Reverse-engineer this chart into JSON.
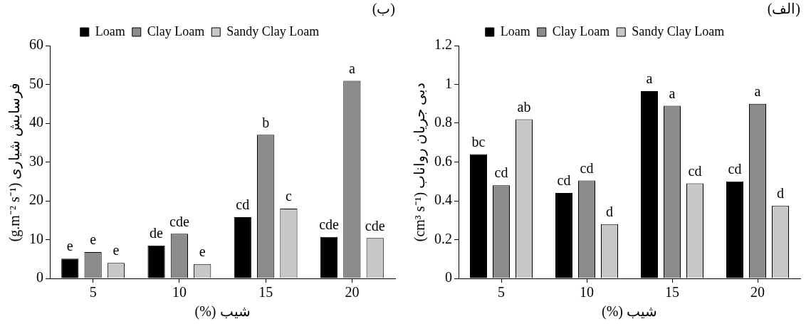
{
  "chart_data": [
    {
      "type": "bar",
      "title": "(ب)",
      "xlabel": "(%) شیب",
      "ylabel": "(g.m⁻² s⁻¹) فرسایش شیاری",
      "categories": [
        "5",
        "10",
        "15",
        "20"
      ],
      "series": [
        {
          "name": "Loam",
          "color": "#000000",
          "values": [
            5.1,
            8.5,
            15.8,
            10.7
          ],
          "value_labels": [
            "e",
            "de",
            "cd",
            "cde"
          ]
        },
        {
          "name": "Clay Loam",
          "color": "#8c8c8c",
          "values": [
            6.8,
            11.5,
            37,
            50.9
          ],
          "value_labels": [
            "e",
            "cde",
            "b",
            "a"
          ]
        },
        {
          "name": "Sandy Clay Loam",
          "color": "#c8c8c8",
          "values": [
            4,
            3.7,
            18,
            10.4
          ],
          "value_labels": [
            "e",
            "e",
            "c",
            "cde"
          ]
        }
      ],
      "ylim": [
        0,
        60
      ],
      "yticks": [
        0,
        10,
        20,
        30,
        40,
        50,
        60
      ],
      "grid": false,
      "legend": "top"
    },
    {
      "type": "bar",
      "title": "(الف)",
      "xlabel": "(%) شیب",
      "ylabel": "(cm³ s⁻¹) دبی جریان رواناب",
      "categories": [
        "5",
        "10",
        "15",
        "20"
      ],
      "series": [
        {
          "name": "Loam",
          "color": "#000000",
          "values": [
            0.64,
            0.44,
            0.965,
            0.5
          ],
          "value_labels": [
            "bc",
            "cd",
            "a",
            "cd"
          ]
        },
        {
          "name": "Clay Loam",
          "color": "#8c8c8c",
          "values": [
            0.48,
            0.505,
            0.89,
            0.9
          ],
          "value_labels": [
            "cd",
            "cd",
            "a",
            "a"
          ]
        },
        {
          "name": "Sandy Clay Loam",
          "color": "#c8c8c8",
          "values": [
            0.82,
            0.28,
            0.49,
            0.375
          ],
          "value_labels": [
            "ab",
            "d",
            "cd",
            "d"
          ]
        }
      ],
      "ylim": [
        0,
        1.2
      ],
      "yticks": [
        0,
        0.2,
        0.4,
        0.6,
        0.8,
        1,
        1.2
      ],
      "grid": false,
      "legend": "top"
    }
  ]
}
